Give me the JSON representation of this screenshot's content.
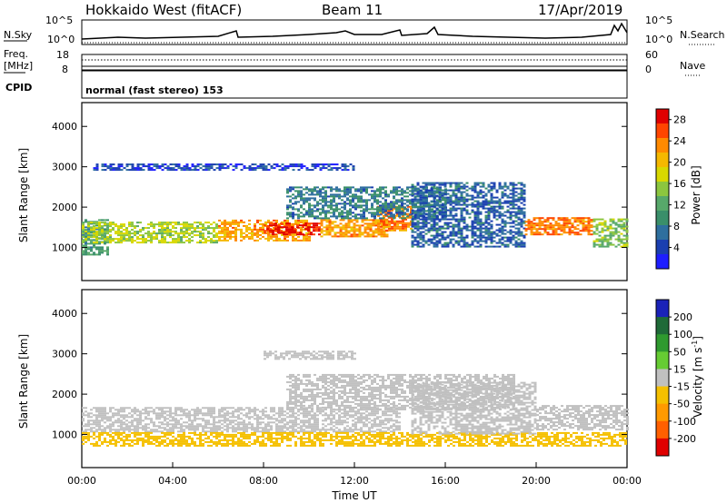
{
  "header": {
    "site": "Hokkaido West (fitACF)",
    "beam": "Beam 11",
    "date": "17/Apr/2019"
  },
  "panels": {
    "nsky_label": "N.Sky",
    "nsearch_label": "N.Search",
    "noise_ticks_left": [
      "10^5",
      "10^0"
    ],
    "noise_ticks_right": [
      "10^5",
      "10^0"
    ],
    "freq_label": "Freq.",
    "freq_unit": "[MHz]",
    "freq_ticks": [
      "18",
      "8"
    ],
    "nave_ticks": [
      "60",
      "0"
    ],
    "nave_label": "Nave",
    "cpid_label": "CPID",
    "cpid_value": "normal (fast stereo) 153"
  },
  "chart_data": [
    {
      "type": "heatmap",
      "name": "power",
      "ylabel": "Slant Range [km]",
      "xlabel": "Time UT",
      "ylim": [
        180,
        4590
      ],
      "xlim_hours": [
        0,
        24
      ],
      "y_ticks": [
        "1000",
        "2000",
        "3000",
        "4000"
      ],
      "colorbar": {
        "label": "Power [dB]",
        "ticks": [
          "4",
          "8",
          "12",
          "16",
          "20",
          "24",
          "28"
        ],
        "colors": [
          "#1e1eff",
          "#1a3fb0",
          "#2e6f9e",
          "#3a8f6a",
          "#57a86a",
          "#8cc63f",
          "#d8d800",
          "#f5b800",
          "#ff8a00",
          "#ff4500",
          "#e00000"
        ]
      },
      "bands": [
        {
          "from_h": 0.0,
          "to_h": 1.2,
          "lo": 800,
          "hi": 1700,
          "level": 10
        },
        {
          "from_h": 0.0,
          "to_h": 6.0,
          "lo": 1100,
          "hi": 1600,
          "level": 16
        },
        {
          "from_h": 6.0,
          "to_h": 10.0,
          "lo": 1150,
          "hi": 1650,
          "level": 22
        },
        {
          "from_h": 8.0,
          "to_h": 10.5,
          "lo": 1300,
          "hi": 1600,
          "level": 28
        },
        {
          "from_h": 10.5,
          "to_h": 13.5,
          "lo": 1250,
          "hi": 1700,
          "level": 22
        },
        {
          "from_h": 13.0,
          "to_h": 14.5,
          "lo": 1400,
          "hi": 2000,
          "level": 24
        },
        {
          "from_h": 9.0,
          "to_h": 16.0,
          "lo": 1700,
          "hi": 2500,
          "level": 8
        },
        {
          "from_h": 14.5,
          "to_h": 19.5,
          "lo": 1000,
          "hi": 2600,
          "level": 6
        },
        {
          "from_h": 19.5,
          "to_h": 22.5,
          "lo": 1300,
          "hi": 1750,
          "level": 24
        },
        {
          "from_h": 22.5,
          "to_h": 24.0,
          "lo": 1000,
          "hi": 1700,
          "level": 14
        },
        {
          "from_h": 0.5,
          "to_h": 12.0,
          "lo": 2900,
          "hi": 3050,
          "level": 4
        }
      ]
    },
    {
      "type": "heatmap",
      "name": "velocity",
      "ylabel": "Slant Range [km]",
      "xlabel": "Time UT",
      "ylim": [
        180,
        4590
      ],
      "xlim_hours": [
        0,
        24
      ],
      "y_ticks": [
        "1000",
        "2000",
        "3000",
        "4000"
      ],
      "x_ticks": [
        "00:00",
        "04:00",
        "08:00",
        "12:00",
        "16:00",
        "20:00",
        "00:00"
      ],
      "colorbar": {
        "label": "Velocity [m s^-1]",
        "ticks": [
          "200",
          "100",
          "50",
          "15",
          "-15",
          "-50",
          "-100",
          "-200"
        ],
        "colors": [
          "#1a22b8",
          "#1f6a38",
          "#2f9a2f",
          "#66cc33",
          "#c0c0c0",
          "#f5c000",
          "#ff9a00",
          "#ff6000",
          "#e00000"
        ]
      },
      "bands": [
        {
          "from_h": 0.0,
          "to_h": 14.0,
          "lo": 1050,
          "hi": 1650,
          "level": 0
        },
        {
          "from_h": 0.0,
          "to_h": 24.0,
          "lo": 700,
          "hi": 1050,
          "level": -40
        },
        {
          "from_h": 9.0,
          "to_h": 19.0,
          "lo": 1600,
          "hi": 2500,
          "level": 0
        },
        {
          "from_h": 14.5,
          "to_h": 20.0,
          "lo": 1000,
          "hi": 2300,
          "level": 20
        },
        {
          "from_h": 20.0,
          "to_h": 24.0,
          "lo": 1100,
          "hi": 1700,
          "level": -10
        },
        {
          "from_h": 8.0,
          "to_h": 12.0,
          "lo": 2850,
          "hi": 3050,
          "level": 0
        }
      ]
    }
  ]
}
